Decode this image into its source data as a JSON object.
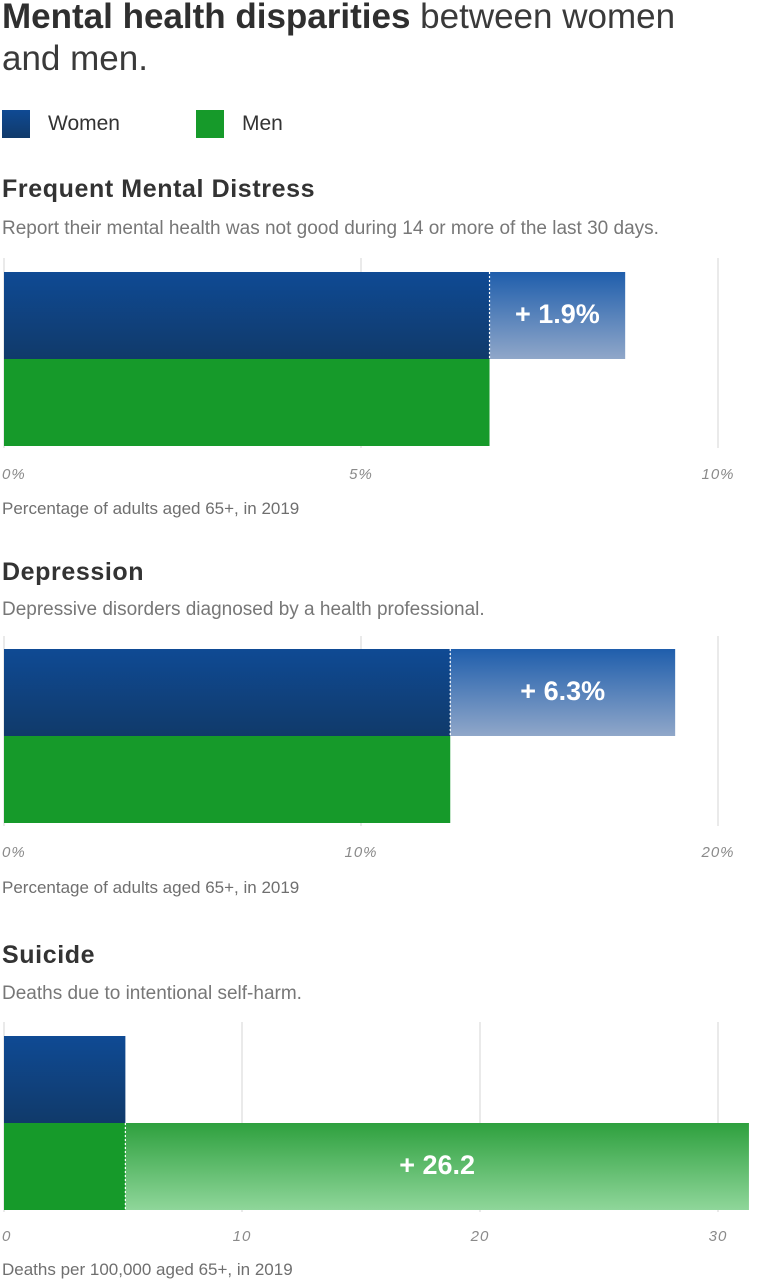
{
  "title": {
    "bold": "Mental health disparities",
    "rest": " between women and men."
  },
  "legend": [
    {
      "label": "Women",
      "color": "#1a4a8a"
    },
    {
      "label": "Men",
      "color": "#169a2a"
    }
  ],
  "colors": {
    "women_top": "#0f4a94",
    "women_bottom": "#103a6a",
    "men": "#169a2a",
    "gap_women_top": "#1f5eac",
    "gap_women_bottom": "#90a7c9",
    "gap_men_top": "#2ea03e",
    "gap_men_bottom": "#8fd69a",
    "grid": "#d6d6d6"
  },
  "chart_data": [
    {
      "type": "bar",
      "title": "Frequent Mental Distress",
      "subtitle": "Report their mental health was not good during 14 or more of the last 30 days.",
      "xlabel": "Percentage of adults aged 65+, in 2019",
      "xlim": [
        0,
        10
      ],
      "ticks": [
        0,
        5,
        10
      ],
      "tick_labels": [
        "0%",
        "5%",
        "10%"
      ],
      "series": [
        {
          "name": "Women",
          "value": 8.7
        },
        {
          "name": "Men",
          "value": 6.8
        }
      ],
      "difference_label": "+ 1.9%",
      "difference_series": "Women"
    },
    {
      "type": "bar",
      "title": "Depression",
      "subtitle": "Depressive disorders diagnosed by a health professional.",
      "xlabel": "Percentage of adults aged 65+, in 2019",
      "xlim": [
        0,
        20
      ],
      "ticks": [
        0,
        10,
        20
      ],
      "tick_labels": [
        "0%",
        "10%",
        "20%"
      ],
      "series": [
        {
          "name": "Women",
          "value": 18.8
        },
        {
          "name": "Men",
          "value": 12.5
        }
      ],
      "difference_label": "+ 6.3%",
      "difference_series": "Women"
    },
    {
      "type": "bar",
      "title": "Suicide",
      "subtitle": "Deaths due to intentional self-harm.",
      "xlabel": "Deaths per 100,000 aged 65+, in 2019",
      "xlim": [
        0,
        30
      ],
      "ticks": [
        0,
        10,
        20,
        30
      ],
      "tick_labels": [
        "0",
        "10",
        "20",
        "30"
      ],
      "series": [
        {
          "name": "Women",
          "value": 5.1
        },
        {
          "name": "Men",
          "value": 31.3
        }
      ],
      "difference_label": "+ 26.2",
      "difference_series": "Men"
    }
  ]
}
